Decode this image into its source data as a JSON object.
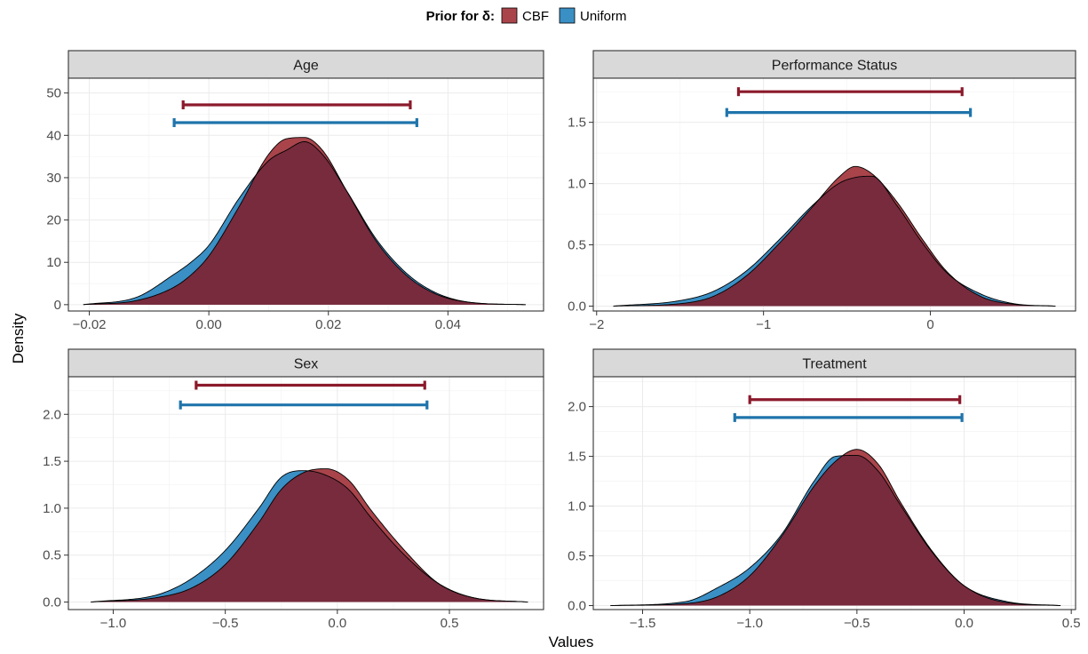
{
  "legend": {
    "title": "Prior for δ:",
    "items": [
      {
        "label": "CBF",
        "color": "#A9444B"
      },
      {
        "label": "Uniform",
        "color": "#3A8FC4"
      }
    ]
  },
  "xlabel": "Values",
  "ylabel": "Density",
  "colors": {
    "cbf_fill": "#A9444B",
    "uniform_fill": "#3A8FC4",
    "overlap_fill": "#772B3D",
    "cbf_interval": "#8B1A2B",
    "uniform_interval": "#1F74AB"
  },
  "chart_data": [
    {
      "type": "area",
      "title": "Age",
      "xlim": [
        -0.0235,
        0.056
      ],
      "ylim": [
        -1.5,
        53.5
      ],
      "xticks": [
        -0.02,
        0.0,
        0.02,
        0.04
      ],
      "xtick_labels": [
        "−0.02",
        "0.00",
        "0.02",
        "0.04"
      ],
      "yticks": [
        0,
        10,
        20,
        30,
        40,
        50
      ],
      "ytick_labels": [
        "0",
        "10",
        "20",
        "30",
        "40",
        "50"
      ],
      "series": [
        {
          "name": "CBF",
          "x": [
            -0.021,
            -0.012,
            -0.006,
            -0.003,
            0.0,
            0.005,
            0.01,
            0.013,
            0.016,
            0.019,
            0.023,
            0.028,
            0.033,
            0.038,
            0.044,
            0.053
          ],
          "y": [
            0,
            1,
            4,
            7,
            11.5,
            23,
            35.5,
            39.2,
            39.5,
            36.5,
            27,
            15,
            7,
            2.5,
            0.5,
            0
          ]
        },
        {
          "name": "Uniform",
          "x": [
            -0.021,
            -0.012,
            -0.006,
            -0.003,
            0.0,
            0.005,
            0.01,
            0.013,
            0.016,
            0.019,
            0.023,
            0.028,
            0.033,
            0.038,
            0.044,
            0.053
          ],
          "y": [
            0,
            1.8,
            7,
            10,
            14,
            25,
            34,
            36.5,
            38.5,
            35.5,
            27,
            15.5,
            7.5,
            2.8,
            0.5,
            0
          ]
        }
      ],
      "intervals": [
        {
          "name": "CBF",
          "low": -0.0043,
          "high": 0.0337,
          "y": 47.2
        },
        {
          "name": "Uniform",
          "low": -0.0058,
          "high": 0.0348,
          "y": 43.0
        }
      ]
    },
    {
      "type": "area",
      "title": "Performance Status",
      "xlim": [
        -2.02,
        0.87
      ],
      "ylim": [
        -0.04,
        1.86
      ],
      "xticks": [
        -2,
        -1,
        0
      ],
      "xtick_labels": [
        "−2",
        "−1",
        "0"
      ],
      "yticks": [
        0.0,
        0.5,
        1.0,
        1.5
      ],
      "ytick_labels": [
        "0.0",
        "0.5",
        "1.0",
        "1.5"
      ],
      "series": [
        {
          "name": "CBF",
          "x": [
            -1.9,
            -1.5,
            -1.3,
            -1.1,
            -0.9,
            -0.7,
            -0.55,
            -0.45,
            -0.35,
            -0.2,
            -0.05,
            0.1,
            0.3,
            0.5,
            0.75
          ],
          "y": [
            0,
            0.02,
            0.08,
            0.25,
            0.52,
            0.82,
            1.05,
            1.14,
            1.08,
            0.85,
            0.55,
            0.28,
            0.08,
            0.015,
            0
          ]
        },
        {
          "name": "Uniform",
          "x": [
            -1.9,
            -1.5,
            -1.3,
            -1.1,
            -0.9,
            -0.7,
            -0.55,
            -0.45,
            -0.35,
            -0.2,
            -0.05,
            0.1,
            0.3,
            0.5,
            0.75
          ],
          "y": [
            0,
            0.045,
            0.12,
            0.29,
            0.55,
            0.83,
            1.0,
            1.05,
            1.06,
            0.82,
            0.52,
            0.27,
            0.1,
            0.02,
            0
          ]
        }
      ],
      "intervals": [
        {
          "name": "CBF",
          "low": -1.15,
          "high": 0.19,
          "y": 1.75
        },
        {
          "name": "Uniform",
          "low": -1.22,
          "high": 0.24,
          "y": 1.58
        }
      ]
    },
    {
      "type": "area",
      "title": "Sex",
      "xlim": [
        -1.2,
        0.92
      ],
      "ylim": [
        -0.08,
        2.4
      ],
      "xticks": [
        -1.0,
        -0.5,
        0.0,
        0.5
      ],
      "xtick_labels": [
        "−1.0",
        "−0.5",
        "0.0",
        "0.5"
      ],
      "yticks": [
        0.0,
        0.5,
        1.0,
        1.5,
        2.0
      ],
      "ytick_labels": [
        "0.0",
        "0.5",
        "1.0",
        "1.5",
        "2.0"
      ],
      "series": [
        {
          "name": "CBF",
          "x": [
            -1.1,
            -0.8,
            -0.65,
            -0.5,
            -0.35,
            -0.25,
            -0.15,
            -0.05,
            0.05,
            0.15,
            0.3,
            0.45,
            0.6,
            0.85
          ],
          "y": [
            0,
            0.05,
            0.15,
            0.4,
            0.85,
            1.2,
            1.38,
            1.42,
            1.3,
            0.98,
            0.55,
            0.2,
            0.05,
            0
          ]
        },
        {
          "name": "Uniform",
          "x": [
            -1.1,
            -0.8,
            -0.65,
            -0.5,
            -0.35,
            -0.25,
            -0.15,
            -0.05,
            0.05,
            0.15,
            0.3,
            0.45,
            0.6,
            0.85
          ],
          "y": [
            0,
            0.08,
            0.25,
            0.55,
            1.0,
            1.33,
            1.4,
            1.35,
            1.2,
            0.9,
            0.5,
            0.2,
            0.05,
            0
          ]
        }
      ],
      "intervals": [
        {
          "name": "CBF",
          "low": -0.63,
          "high": 0.39,
          "y": 2.31
        },
        {
          "name": "Uniform",
          "low": -0.7,
          "high": 0.4,
          "y": 2.1
        }
      ]
    },
    {
      "type": "area",
      "title": "Treatment",
      "xlim": [
        -1.73,
        0.52
      ],
      "ylim": [
        -0.04,
        2.3
      ],
      "xticks": [
        -1.5,
        -1.0,
        -0.5,
        0.0,
        0.5
      ],
      "xtick_labels": [
        "−1.5",
        "−1.0",
        "−0.5",
        "0.0",
        "0.5"
      ],
      "yticks": [
        0.0,
        0.5,
        1.0,
        1.5,
        2.0
      ],
      "ytick_labels": [
        "0.0",
        "0.5",
        "1.0",
        "1.5",
        "2.0"
      ],
      "series": [
        {
          "name": "CBF",
          "x": [
            -1.65,
            -1.3,
            -1.15,
            -1.0,
            -0.85,
            -0.7,
            -0.6,
            -0.5,
            -0.4,
            -0.3,
            -0.15,
            0.0,
            0.2,
            0.45
          ],
          "y": [
            0,
            0.02,
            0.09,
            0.3,
            0.7,
            1.2,
            1.45,
            1.57,
            1.42,
            1.05,
            0.55,
            0.2,
            0.03,
            0
          ]
        },
        {
          "name": "Uniform",
          "x": [
            -1.65,
            -1.3,
            -1.15,
            -1.0,
            -0.85,
            -0.7,
            -0.6,
            -0.5,
            -0.4,
            -0.3,
            -0.15,
            0.0,
            0.2,
            0.45
          ],
          "y": [
            0,
            0.04,
            0.18,
            0.38,
            0.72,
            1.25,
            1.5,
            1.51,
            1.35,
            1.02,
            0.54,
            0.2,
            0.04,
            0
          ]
        }
      ],
      "intervals": [
        {
          "name": "CBF",
          "low": -1.0,
          "high": -0.02,
          "y": 2.07
        },
        {
          "name": "Uniform",
          "low": -1.07,
          "high": -0.01,
          "y": 1.89
        }
      ]
    }
  ]
}
